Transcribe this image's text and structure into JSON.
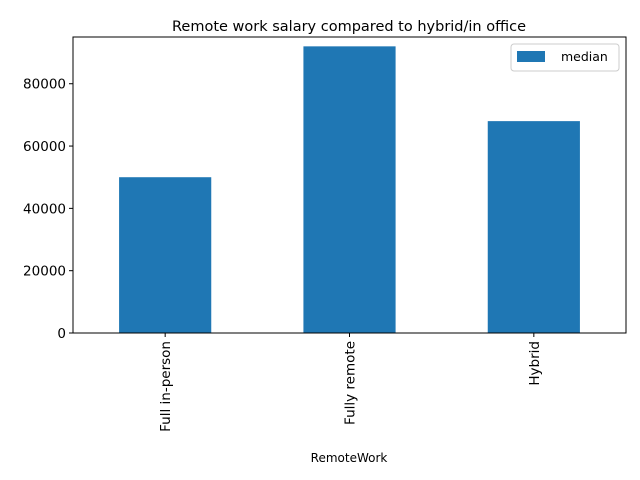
{
  "chart_data": {
    "type": "bar",
    "title": "Remote work salary compared to hybrid/in office",
    "xlabel": "RemoteWork",
    "ylabel": "",
    "categories": [
      "Full in-person",
      "Fully remote",
      "Hybrid"
    ],
    "series": [
      {
        "name": "median",
        "values": [
          50000,
          92000,
          68000
        ],
        "color": "#1f77b4"
      }
    ],
    "ylim": [
      0,
      95000
    ],
    "yticks": [
      0,
      20000,
      40000,
      60000,
      80000
    ],
    "ytick_labels": [
      "0",
      "20000",
      "40000",
      "60000",
      "80000"
    ],
    "grid": false,
    "legend": {
      "position": "top-right",
      "label": "median"
    }
  }
}
